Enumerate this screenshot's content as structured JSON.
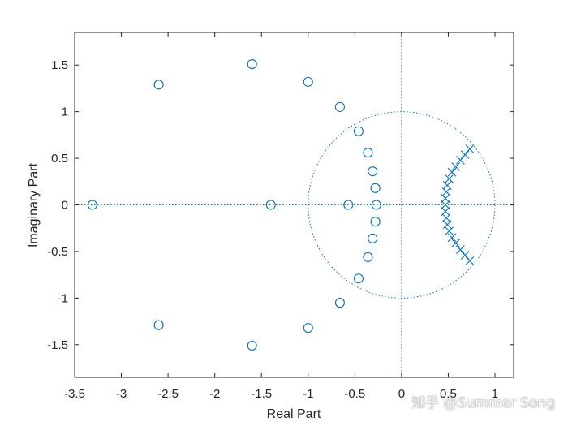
{
  "chart_data": {
    "type": "scatter",
    "title": "",
    "xlabel": "Real Part",
    "ylabel": "Imaginary Part",
    "xlim": [
      -3.5,
      1.2
    ],
    "ylim": [
      -1.85,
      1.85
    ],
    "x_ticks": [
      -3.5,
      -3,
      -2.5,
      -2,
      -1.5,
      -1,
      -0.5,
      0,
      0.5,
      1
    ],
    "x_tick_labels": [
      "-3.5",
      "-3",
      "-2.5",
      "-2",
      "-1.5",
      "-1",
      "-0.5",
      "0",
      "0.5",
      "1"
    ],
    "y_ticks": [
      -1.5,
      -1,
      -0.5,
      0,
      0.5,
      1,
      1.5
    ],
    "y_tick_labels": [
      "-1.5",
      "-1",
      "-0.5",
      "0",
      "0.5",
      "1",
      "1.5"
    ],
    "grid": false,
    "unit_circle": true,
    "reference_lines": [
      {
        "orientation": "horizontal",
        "value": 0
      },
      {
        "orientation": "vertical",
        "value": 0
      }
    ],
    "color": "#0072BD",
    "series": [
      {
        "marker": "o",
        "points": [
          [
            -3.31,
            0
          ],
          [
            -2.6,
            1.29
          ],
          [
            -2.6,
            -1.29
          ],
          [
            -1.6,
            1.51
          ],
          [
            -1.6,
            -1.51
          ],
          [
            -1.4,
            0
          ],
          [
            -1.0,
            1.32
          ],
          [
            -1.0,
            -1.32
          ],
          [
            -0.66,
            1.05
          ],
          [
            -0.66,
            -1.05
          ],
          [
            -0.57,
            0
          ],
          [
            -0.46,
            0.79
          ],
          [
            -0.46,
            -0.79
          ],
          [
            -0.36,
            0.56
          ],
          [
            -0.36,
            -0.56
          ],
          [
            -0.31,
            0.36
          ],
          [
            -0.31,
            -0.36
          ],
          [
            -0.28,
            0.18
          ],
          [
            -0.28,
            -0.18
          ],
          [
            -0.27,
            0
          ]
        ]
      },
      {
        "marker": "x",
        "points": [
          [
            0.47,
            0
          ],
          [
            0.47,
            0.07
          ],
          [
            0.47,
            -0.07
          ],
          [
            0.48,
            0.14
          ],
          [
            0.48,
            -0.14
          ],
          [
            0.49,
            0.21
          ],
          [
            0.49,
            -0.21
          ],
          [
            0.51,
            0.28
          ],
          [
            0.51,
            -0.28
          ],
          [
            0.54,
            0.35
          ],
          [
            0.54,
            -0.35
          ],
          [
            0.58,
            0.41
          ],
          [
            0.58,
            -0.41
          ],
          [
            0.63,
            0.48
          ],
          [
            0.63,
            -0.48
          ],
          [
            0.68,
            0.54
          ],
          [
            0.68,
            -0.54
          ],
          [
            0.73,
            0.6
          ],
          [
            0.73,
            -0.6
          ]
        ]
      }
    ]
  },
  "watermark": "知乎 @Summer Song"
}
